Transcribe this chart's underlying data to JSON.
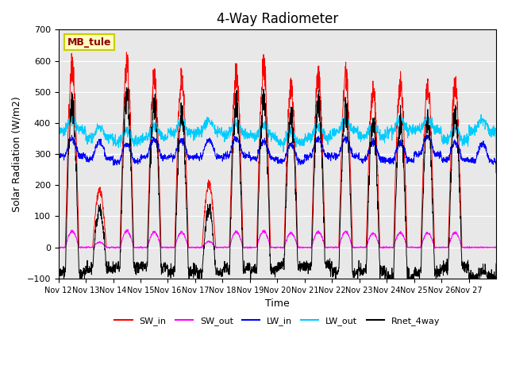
{
  "title": "4-Way Radiometer",
  "ylabel": "Solar Radiation (W/m2)",
  "xlabel": "Time",
  "station_label": "MB_tule",
  "ylim": [
    -100,
    700
  ],
  "yticks": [
    -100,
    0,
    100,
    200,
    300,
    400,
    500,
    600,
    700
  ],
  "bg_color": "#e8e8e8",
  "fig_bg": "#ffffff",
  "x_labels": [
    "Nov 12",
    "Nov 13",
    "Nov 14",
    "Nov 15",
    "Nov 16",
    "Nov 17",
    "Nov 18",
    "Nov 19",
    "Nov 20",
    "Nov 21",
    "Nov 22",
    "Nov 23",
    "Nov 24",
    "Nov 25",
    "Nov 26",
    "Nov 27"
  ],
  "colors": {
    "SW_in": "#ff0000",
    "SW_out": "#ff00ff",
    "LW_in": "#0000ff",
    "LW_out": "#00ccff",
    "Rnet_4way": "#000000"
  },
  "legend_entries": [
    "SW_in",
    "SW_out",
    "LW_in",
    "LW_out",
    "Rnet_4way"
  ],
  "num_days": 16,
  "points_per_day": 144,
  "sw_in_peaks": [
    630,
    200,
    635,
    585,
    590,
    220,
    600,
    625,
    550,
    590,
    600,
    540,
    570,
    560,
    560,
    0
  ]
}
